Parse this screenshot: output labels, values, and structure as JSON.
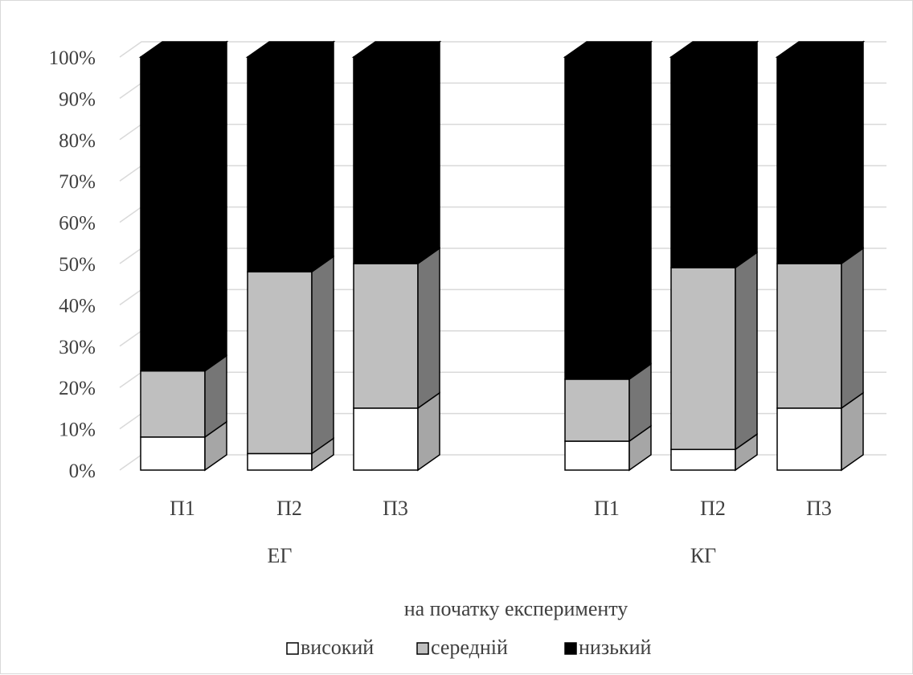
{
  "chart_data": {
    "type": "bar",
    "stacked": true,
    "percent": true,
    "three_d": true,
    "ylim": [
      0,
      100
    ],
    "yticks": [
      "0%",
      "10%",
      "20%",
      "30%",
      "40%",
      "50%",
      "60%",
      "70%",
      "80%",
      "90%",
      "100%"
    ],
    "groups": [
      {
        "label": "ЕГ",
        "categories": [
          "П1",
          "П2",
          "П3"
        ]
      },
      {
        "label": "КГ",
        "categories": [
          "П1",
          "П2",
          "П3"
        ]
      }
    ],
    "xlabel": "на початку експерименту",
    "series": [
      {
        "name": "високий",
        "color": "#ffffff",
        "values": [
          8,
          4,
          15,
          7,
          5,
          15
        ]
      },
      {
        "name": "середній",
        "color": "#bfbfbf",
        "values": [
          16,
          44,
          35,
          15,
          44,
          35
        ]
      },
      {
        "name": "низький",
        "color": "#000000",
        "values": [
          76,
          52,
          50,
          78,
          51,
          50
        ]
      }
    ],
    "grid": true,
    "legend_position": "bottom"
  }
}
